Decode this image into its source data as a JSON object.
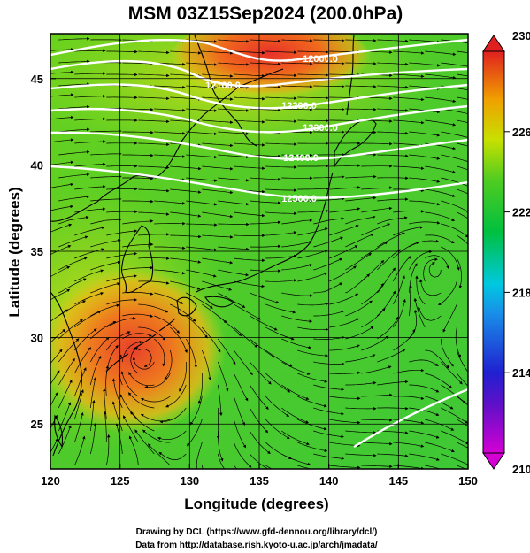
{
  "title": "MSM 03Z15Sep2024 (200.0hPa)",
  "x_axis": {
    "label": "Longitude (degrees)",
    "ticks": [
      "120",
      "125",
      "130",
      "135",
      "140",
      "145",
      "150"
    ],
    "range": [
      120,
      150
    ]
  },
  "y_axis": {
    "label": "Latitude  (degrees)",
    "ticks": [
      "25",
      "30",
      "35",
      "40",
      "45"
    ],
    "range": [
      22.4,
      47.6
    ]
  },
  "colorbar": {
    "ticks": [
      "210",
      "214",
      "218",
      "222",
      "226",
      "230"
    ],
    "range": [
      210,
      230
    ],
    "colors": [
      "#d400d4",
      "#2020d0",
      "#00c8e0",
      "#00c040",
      "#c8e000",
      "#f0a000",
      "#e02020"
    ]
  },
  "contours": {
    "color": "#ffffff",
    "labels": [
      "12000.0",
      "12100.0",
      "12200.0",
      "12300.0",
      "12400.0",
      "12500.0"
    ]
  },
  "credits": {
    "line1": "Drawing by DCL (https://www.gfd-dennou.org/library/dcl/)",
    "line2": "Data from http://database.rish.kyoto-u.ac.jp/arch/jmadata/"
  },
  "chart_data": {
    "type": "heatmap",
    "description_quantity": "temperature (K) color field with geopotential height contours and wind streamlines",
    "lon_range": [
      120,
      150
    ],
    "lat_range": [
      22.4,
      47.6
    ],
    "color_range": [
      210,
      230
    ],
    "warm_regions": [
      {
        "lon": 126.5,
        "lat": 29.5,
        "value": 228.5
      },
      {
        "lon": 133,
        "lat": 46,
        "value": 229.5
      }
    ],
    "cyclonic_circulation": [
      {
        "lon": 126.5,
        "lat": 29.2
      },
      {
        "lon": 147.5,
        "lat": 34.5
      }
    ],
    "contour_values": [
      12000,
      12100,
      12200,
      12300,
      12400,
      12500
    ]
  }
}
